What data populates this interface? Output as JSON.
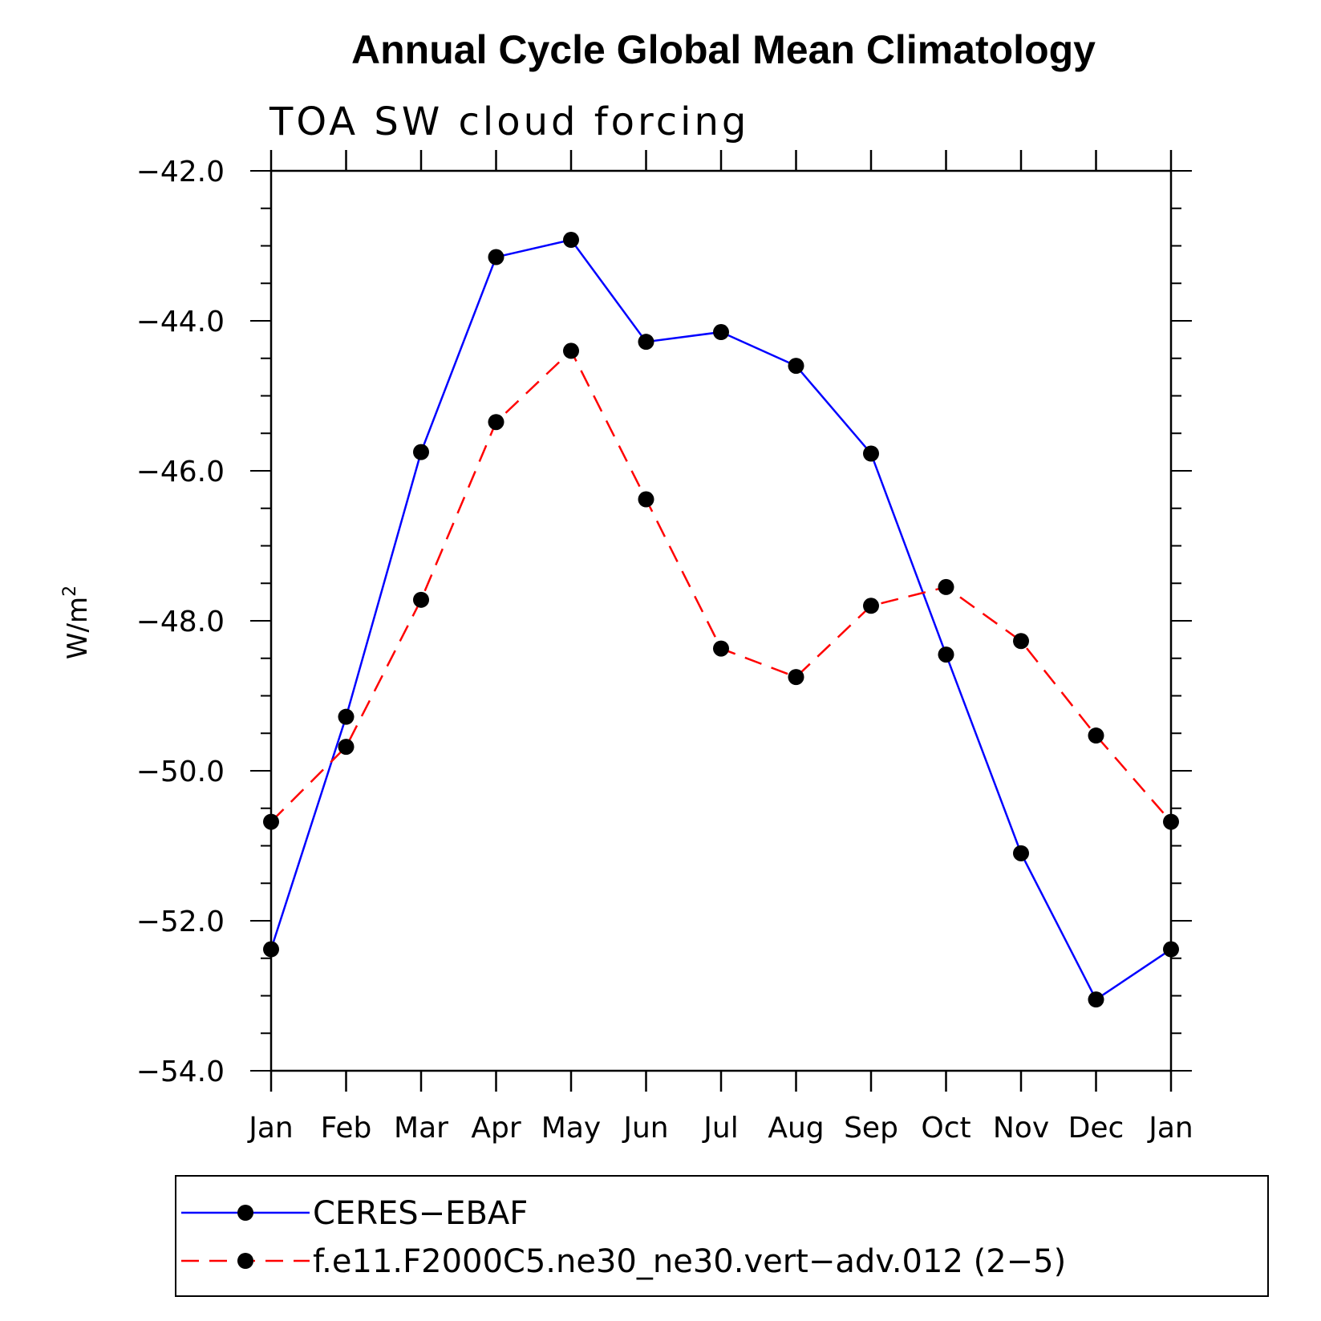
{
  "chart_data": {
    "type": "line",
    "title": "Annual Cycle Global Mean Climatology",
    "subtitle": "TOA SW cloud forcing",
    "ylabel": "W/m",
    "ylabel_sup": "2",
    "xlabel": "",
    "categories": [
      "Jan",
      "Feb",
      "Mar",
      "Apr",
      "May",
      "Jun",
      "Jul",
      "Aug",
      "Sep",
      "Oct",
      "Nov",
      "Dec",
      "Jan"
    ],
    "ylim": [
      -54.0,
      -42.0
    ],
    "yticks": [
      "-42.0",
      "-44.0",
      "-46.0",
      "-48.0",
      "-50.0",
      "-52.0",
      "-54.0"
    ],
    "grid": false,
    "legend_position": "bottom",
    "series": [
      {
        "name": "CERES-EBAF",
        "color": "#0000ff",
        "dash": "solid",
        "values": [
          -52.38,
          -49.28,
          -45.75,
          -43.15,
          -42.92,
          -44.28,
          -44.15,
          -44.6,
          -45.77,
          -48.45,
          -51.1,
          -53.05,
          -52.38
        ]
      },
      {
        "name": "f.e11.F2000C5.ne30_ne30.vert-adv.012 (2-5)",
        "color": "#ff0000",
        "dash": "dashed",
        "values": [
          -50.68,
          -49.68,
          -47.72,
          -45.35,
          -44.4,
          -46.38,
          -48.37,
          -48.75,
          -47.8,
          -47.55,
          -48.27,
          -49.53,
          -50.68
        ]
      }
    ]
  }
}
